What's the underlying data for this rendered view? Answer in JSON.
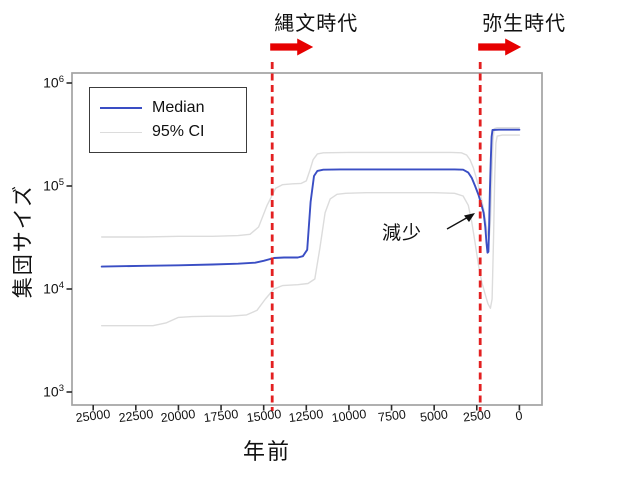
{
  "colors": {
    "median": "#3a4ec4",
    "ci": "#dcdcdc",
    "arrow_red": "#e60000",
    "dashed_red": "#e32021",
    "frame": "#a3a3a3",
    "tick": "#2a2a2a"
  },
  "legend": {
    "items": [
      {
        "label": "Median",
        "color": "#3a4ec4",
        "thickness": 2.2
      },
      {
        "label": "95% CI",
        "color": "#dcdcdc",
        "thickness": 1.8
      }
    ]
  },
  "annotation": {
    "text": "減少"
  },
  "chart_data": {
    "type": "line",
    "title": "",
    "xlabel": "年前",
    "ylabel": "集団サイズ",
    "x_axis": {
      "min": 0,
      "max": 25000,
      "reversed": true,
      "ticks": [
        25000,
        22500,
        20000,
        17500,
        15000,
        12500,
        10000,
        7500,
        5000,
        2500,
        0
      ]
    },
    "y_axis": {
      "scale": "log10",
      "min": 1000,
      "max": 1000000,
      "ticks": [
        {
          "base": "10",
          "exp": "6",
          "value": 1000000
        },
        {
          "base": "10",
          "exp": "5",
          "value": 100000
        },
        {
          "base": "10",
          "exp": "4",
          "value": 10000
        },
        {
          "base": "10",
          "exp": "3",
          "value": 1000
        }
      ]
    },
    "events": [
      {
        "label": "縄文時代",
        "year": 14500
      },
      {
        "label": "弥生時代",
        "year": 2300
      }
    ],
    "series": [
      {
        "name": "Median",
        "color": "#3a4ec4",
        "width": 1.9,
        "points": [
          [
            24500,
            16500
          ],
          [
            22000,
            16800
          ],
          [
            20000,
            17000
          ],
          [
            18000,
            17300
          ],
          [
            16500,
            17600
          ],
          [
            15500,
            18000
          ],
          [
            15000,
            18800
          ],
          [
            14400,
            20000
          ],
          [
            13800,
            20200
          ],
          [
            13000,
            20200
          ],
          [
            12700,
            20800
          ],
          [
            12450,
            24000
          ],
          [
            12250,
            70000
          ],
          [
            12050,
            125000
          ],
          [
            11850,
            140000
          ],
          [
            11500,
            144000
          ],
          [
            10500,
            145000
          ],
          [
            9000,
            145000
          ],
          [
            7000,
            145000
          ],
          [
            5000,
            145000
          ],
          [
            3800,
            145000
          ],
          [
            3300,
            144000
          ],
          [
            3000,
            135000
          ],
          [
            2800,
            120000
          ],
          [
            2600,
            100000
          ],
          [
            2400,
            82000
          ],
          [
            2250,
            68000
          ],
          [
            2100,
            55000
          ],
          [
            2000,
            40000
          ],
          [
            1930,
            28000
          ],
          [
            1870,
            22500
          ],
          [
            1820,
            23000
          ],
          [
            1780,
            40000
          ],
          [
            1730,
            90000
          ],
          [
            1680,
            180000
          ],
          [
            1630,
            300000
          ],
          [
            1580,
            350000
          ],
          [
            1200,
            352000
          ],
          [
            600,
            352000
          ],
          [
            0,
            352000
          ]
        ]
      },
      {
        "name": "95% CI upper",
        "color": "#dcdcdc",
        "width": 1.4,
        "points": [
          [
            24500,
            32000
          ],
          [
            22000,
            32000
          ],
          [
            20000,
            32500
          ],
          [
            18000,
            32500
          ],
          [
            16500,
            33000
          ],
          [
            15800,
            34000
          ],
          [
            15300,
            40000
          ],
          [
            14800,
            65000
          ],
          [
            14300,
            95000
          ],
          [
            13900,
            103000
          ],
          [
            13300,
            105000
          ],
          [
            12800,
            106000
          ],
          [
            12500,
            112000
          ],
          [
            12300,
            140000
          ],
          [
            12100,
            180000
          ],
          [
            11850,
            205000
          ],
          [
            11500,
            210000
          ],
          [
            10000,
            212000
          ],
          [
            8000,
            212000
          ],
          [
            6000,
            212000
          ],
          [
            4000,
            212000
          ],
          [
            3400,
            210000
          ],
          [
            3100,
            200000
          ],
          [
            2900,
            180000
          ],
          [
            2700,
            150000
          ],
          [
            2500,
            115000
          ],
          [
            2300,
            85000
          ],
          [
            2100,
            60000
          ],
          [
            1950,
            42000
          ],
          [
            1850,
            33000
          ],
          [
            1780,
            30000
          ],
          [
            1700,
            45000
          ],
          [
            1620,
            120000
          ],
          [
            1550,
            280000
          ],
          [
            1480,
            360000
          ],
          [
            1300,
            368000
          ],
          [
            800,
            368000
          ],
          [
            0,
            368000
          ]
        ]
      },
      {
        "name": "95% CI lower",
        "color": "#dcdcdc",
        "width": 1.4,
        "points": [
          [
            24500,
            4400
          ],
          [
            23000,
            4400
          ],
          [
            21500,
            4400
          ],
          [
            20700,
            4700
          ],
          [
            20000,
            5300
          ],
          [
            19200,
            5400
          ],
          [
            18000,
            5450
          ],
          [
            17000,
            5450
          ],
          [
            16000,
            5600
          ],
          [
            15400,
            6200
          ],
          [
            14900,
            8000
          ],
          [
            14400,
            10000
          ],
          [
            13900,
            10800
          ],
          [
            13000,
            11000
          ],
          [
            12400,
            11300
          ],
          [
            12000,
            12500
          ],
          [
            11700,
            25000
          ],
          [
            11400,
            55000
          ],
          [
            11100,
            75000
          ],
          [
            10700,
            83000
          ],
          [
            10200,
            85000
          ],
          [
            9000,
            86000
          ],
          [
            7000,
            86000
          ],
          [
            5000,
            86000
          ],
          [
            3800,
            85000
          ],
          [
            3300,
            80000
          ],
          [
            3000,
            65000
          ],
          [
            2800,
            45000
          ],
          [
            2600,
            28000
          ],
          [
            2400,
            17000
          ],
          [
            2200,
            11500
          ],
          [
            2000,
            8800
          ],
          [
            1850,
            7200
          ],
          [
            1700,
            6500
          ],
          [
            1600,
            8000
          ],
          [
            1520,
            30000
          ],
          [
            1450,
            120000
          ],
          [
            1380,
            260000
          ],
          [
            1300,
            305000
          ],
          [
            1000,
            312000
          ],
          [
            0,
            312000
          ]
        ]
      }
    ]
  }
}
